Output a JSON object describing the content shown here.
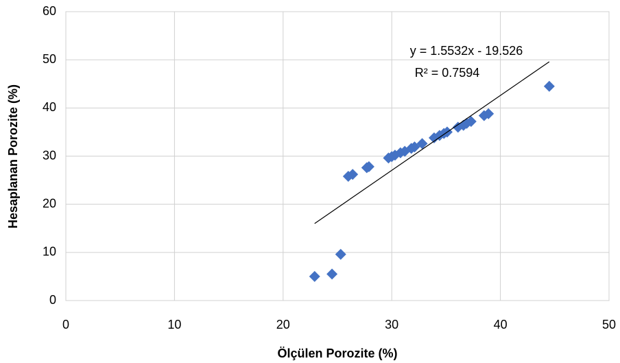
{
  "chart_data": {
    "type": "scatter",
    "x_label": "Ölçülen Porozite (%)",
    "y_label": "Hesaplanan Porozite (%)",
    "xlim": [
      0,
      50
    ],
    "xticks": [
      0,
      10,
      20,
      30,
      40,
      50
    ],
    "ylim": [
      0,
      60
    ],
    "yticks": [
      0,
      10,
      20,
      30,
      40,
      50,
      60
    ],
    "grid": true,
    "series": [
      {
        "color": "#4472c4",
        "x": [
          22.9,
          24.5,
          25.3,
          26.0,
          26.4,
          27.7,
          27.9,
          29.7,
          30.0,
          30.3,
          30.8,
          31.2,
          31.8,
          32.1,
          32.8,
          33.9,
          34.4,
          34.8,
          35.1,
          36.1,
          36.6,
          36.9,
          37.3,
          38.5,
          38.9,
          44.5
        ],
        "values": [
          5.0,
          5.5,
          9.6,
          25.8,
          26.2,
          27.6,
          27.8,
          29.6,
          29.9,
          30.2,
          30.7,
          31.0,
          31.6,
          31.9,
          32.6,
          33.8,
          34.3,
          34.7,
          35.0,
          36.0,
          36.4,
          36.8,
          37.2,
          38.4,
          38.8,
          44.5
        ]
      }
    ],
    "trendline": {
      "color": "#000000",
      "x": [
        22.9,
        44.5
      ],
      "y": [
        16.0,
        49.6
      ],
      "equation": "y = 1.5532x - 19.526",
      "r_squared": "R² = 0.7594"
    }
  }
}
